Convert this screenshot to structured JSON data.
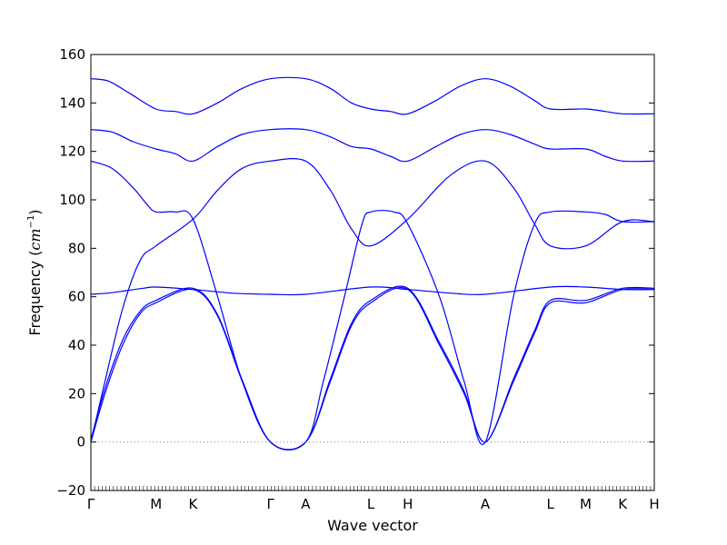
{
  "chart_data": {
    "type": "line",
    "xlabel": "Wave vector",
    "ylabel_text": "Frequency (",
    "ylabel_unit": "cm",
    "ylabel_exp": "−1",
    "ylabel_close": ")",
    "ylim": [
      -20,
      160
    ],
    "yticks": [
      -20,
      0,
      20,
      40,
      60,
      80,
      100,
      120,
      140,
      160
    ],
    "grid": false,
    "zero_line": 0,
    "path_length": 16.0,
    "high_symmetry_points": [
      {
        "label": "Γ",
        "pos": 0.0
      },
      {
        "label": "M",
        "pos": 1.85
      },
      {
        "label": "K",
        "pos": 2.9
      },
      {
        "label": "Γ",
        "pos": 5.1
      },
      {
        "label": "A",
        "pos": 6.1
      },
      {
        "label": "L",
        "pos": 7.95
      },
      {
        "label": "H",
        "pos": 9.0
      },
      {
        "label": "A",
        "pos": 11.2
      },
      {
        "label": "L",
        "pos": 13.05
      },
      {
        "label": "M",
        "pos": 14.05
      },
      {
        "label": "K",
        "pos": 15.1
      },
      {
        "label": "H",
        "pos": 16.0
      }
    ],
    "series": [
      {
        "x": [
          0,
          0.4,
          0.9,
          1.4,
          1.85,
          2.9,
          3.6,
          4.3,
          5.1,
          6.1,
          6.8,
          7.4,
          7.95,
          9.0,
          9.9,
          10.6,
          11.2,
          12.0,
          12.6,
          13.05,
          14.05,
          15.1,
          16.0
        ],
        "y": [
          0,
          20,
          40,
          53,
          57.5,
          63,
          52,
          25,
          0,
          0,
          25,
          48,
          57.5,
          63,
          40,
          20,
          0,
          25,
          45,
          57.5,
          57.5,
          63,
          63
        ]
      },
      {
        "x": [
          0,
          0.4,
          0.9,
          1.4,
          1.85,
          2.9,
          3.6,
          4.3,
          5.1,
          6.1,
          6.8,
          7.4,
          7.95,
          9.0,
          9.9,
          10.6,
          11.2,
          12.0,
          12.6,
          13.05,
          14.05,
          15.1,
          16.0
        ],
        "y": [
          1,
          22,
          42,
          54,
          58.5,
          63.5,
          52.5,
          25.5,
          0,
          0,
          26,
          49,
          58.5,
          63.5,
          41,
          21,
          0,
          26,
          46,
          58.5,
          58.5,
          63.5,
          63.5
        ]
      },
      {
        "x": [
          0,
          0.5,
          1.0,
          1.5,
          1.85,
          2.9,
          4.0,
          5.1,
          6.1,
          7.95,
          9.0,
          10.2,
          11.2,
          13.05,
          14.05,
          15.1,
          16.0
        ],
        "y": [
          61,
          61.5,
          62.5,
          63.5,
          64,
          63,
          61.5,
          61,
          61,
          64,
          63,
          61.5,
          61,
          64,
          64,
          63,
          63
        ]
      },
      {
        "x": [
          0,
          0.4,
          0.9,
          1.4,
          1.85,
          2.9,
          3.6,
          4.3,
          5.1,
          6.1,
          6.8,
          7.4,
          7.95,
          9.0,
          10.2,
          11.2,
          12.0,
          12.6,
          13.05,
          14.05,
          15.1,
          16.0
        ],
        "y": [
          0,
          25,
          55,
          75,
          81,
          92,
          104,
          113,
          116,
          116,
          104,
          88,
          81,
          92,
          110,
          116,
          105,
          90,
          81,
          81,
          91,
          91
        ]
      },
      {
        "x": [
          0,
          0.6,
          1.2,
          1.6,
          1.85,
          2.4,
          2.9,
          3.6,
          4.3,
          5.1,
          6.1,
          6.6,
          7.2,
          7.7,
          7.95,
          8.6,
          9.0,
          9.9,
          10.6,
          11.2,
          12.0,
          12.6,
          13.05,
          14.05,
          14.6,
          15.1,
          16.0
        ],
        "y": [
          116,
          113,
          105,
          98,
          95,
          95,
          92,
          60,
          25,
          0,
          0,
          25,
          60,
          90,
          95,
          95,
          90,
          60,
          25,
          0,
          60,
          90,
          95,
          95,
          94,
          91,
          91
        ]
      },
      {
        "x": [
          0,
          0.6,
          1.2,
          1.85,
          2.4,
          2.9,
          3.6,
          4.3,
          5.1,
          6.1,
          6.8,
          7.4,
          7.95,
          8.5,
          9.0,
          9.8,
          10.5,
          11.2,
          11.9,
          12.6,
          13.05,
          14.05,
          14.6,
          15.1,
          16.0
        ],
        "y": [
          129,
          128,
          124,
          121,
          119,
          116,
          122,
          127,
          129,
          129,
          126,
          122,
          121,
          118,
          116,
          122,
          127,
          129,
          127,
          123,
          121,
          121,
          118,
          116,
          116
        ]
      },
      {
        "x": [
          0,
          0.5,
          1.1,
          1.85,
          2.4,
          2.9,
          3.6,
          4.3,
          5.1,
          6.1,
          6.8,
          7.4,
          7.95,
          8.5,
          9.0,
          9.8,
          10.5,
          11.2,
          11.9,
          12.6,
          13.05,
          14.05,
          14.6,
          15.1,
          16.0
        ],
        "y": [
          150,
          149,
          144,
          137.5,
          136.5,
          135.5,
          140,
          146,
          150,
          150,
          146,
          140,
          137.5,
          136.5,
          135.5,
          141,
          147,
          150,
          147,
          141,
          137.5,
          137.5,
          136.5,
          135.5,
          135.5
        ]
      }
    ],
    "line_color": "#0000ff"
  }
}
